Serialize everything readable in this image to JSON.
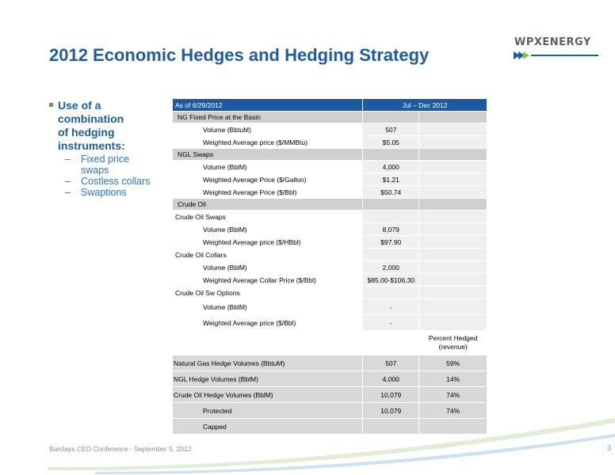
{
  "slide": {
    "title": "2012 Economic Hedges and Hedging Strategy",
    "logo_text": "WPXENERGY",
    "footer": "Barclays CEO Conference  - September 5, 2012",
    "page_number": "3"
  },
  "bullets": {
    "main_lines": [
      "Use of a",
      "combination",
      "of hedging",
      "instruments:"
    ],
    "subs": [
      {
        "dash": "–",
        "lines": [
          "Fixed price",
          "swaps"
        ]
      },
      {
        "dash": "–",
        "lines": [
          "Costless collars"
        ]
      },
      {
        "dash": "–",
        "lines": [
          "Swaptions"
        ]
      }
    ]
  },
  "table": {
    "header": [
      "As of 6/29/2012",
      "Jul – Dec 2012",
      ""
    ],
    "rows": [
      {
        "type": "sec",
        "label": "NG Fixed Price at the Basin",
        "v1": "",
        "v2": ""
      },
      {
        "type": "row",
        "label": "Volume (BbtuM)",
        "v1": "507",
        "v2": ""
      },
      {
        "type": "row",
        "label": "Weighted Average price ($/MMBtu)",
        "v1": "$5.05",
        "v2": ""
      },
      {
        "type": "sec",
        "label": "NGL Swaps",
        "v1": "",
        "v2": ""
      },
      {
        "type": "row",
        "label": "Volume (BblM)",
        "v1": "4,000",
        "v2": ""
      },
      {
        "type": "row",
        "label": "Weighted Average Price ($/Gallon)",
        "v1": "$1.21",
        "v2": ""
      },
      {
        "type": "row",
        "label": "Weighted Average Price ($/Bbl)",
        "v1": "$50.74",
        "v2": ""
      },
      {
        "type": "sec",
        "label": "Crude Oil",
        "v1": "",
        "v2": ""
      },
      {
        "type": "rowflat",
        "label": "Crude Oil Swaps",
        "v1": "",
        "v2": ""
      },
      {
        "type": "row",
        "label": "Volume (BblM)",
        "v1": "8,079",
        "v2": ""
      },
      {
        "type": "row",
        "label": "Weighted Average price ($/HBbl)",
        "v1": "$97.90",
        "v2": ""
      },
      {
        "type": "rowflat",
        "label": "Crude Oil Collars",
        "v1": "",
        "v2": ""
      },
      {
        "type": "row",
        "label": "Volume (BblM)",
        "v1": "2,000",
        "v2": ""
      },
      {
        "type": "row",
        "label": "Weighted Average Collar Price ($/Bbl)",
        "v1": "$85.00-$106.30",
        "v2": ""
      },
      {
        "type": "rowflat",
        "label": "Crude Oil Sw Options",
        "v1": "",
        "v2": ""
      },
      {
        "type": "rowtall",
        "label": "Volume (BblM)",
        "v1": "-",
        "v2": ""
      },
      {
        "type": "rowtall",
        "label": "Weighted Average price ($/Bbl)",
        "v1": "-",
        "v2": ""
      }
    ],
    "percent_header": "Percent Hedged (revenue)",
    "summary": [
      {
        "label": "Natural Gas Hedge Volumes (BbtuM)",
        "v1": "507",
        "v2": "59%"
      },
      {
        "label": "NGL Hedge Volumes (BblM)",
        "v1": "4,000",
        "v2": "14%"
      },
      {
        "label": "Crude Oil Hedge Volumes (BblM)",
        "v1": "10,079",
        "v2": "74%"
      },
      {
        "label": "Protected",
        "v1": "10,079",
        "v2": "74%"
      },
      {
        "label": "Capped",
        "v1": "",
        "v2": ""
      }
    ]
  },
  "colors": {
    "title": "#1f5c99",
    "header_bg": "#1c5aa1",
    "section_bg": "#cfcfcf",
    "bullet_square": "#6aa844",
    "logo_arrow_blue": "#1c5aa1",
    "logo_arrow_green": "#8dc63f"
  }
}
